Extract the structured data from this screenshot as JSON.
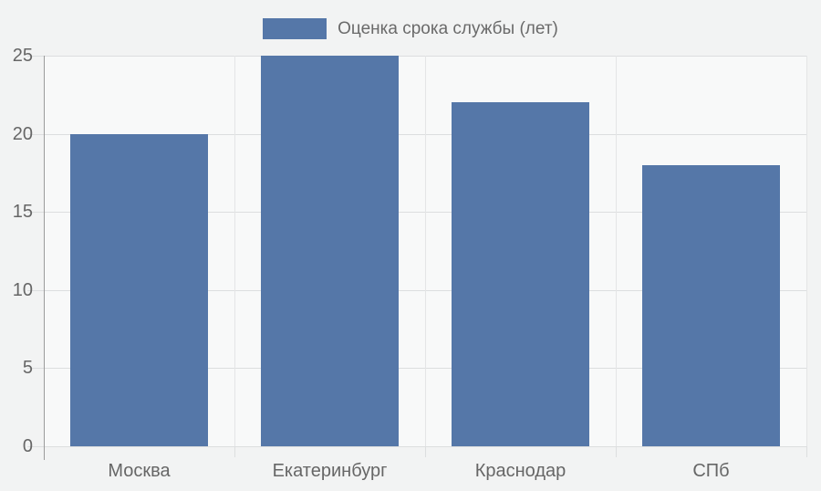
{
  "chart_data": {
    "type": "bar",
    "title": "",
    "legend": "Оценка срока службы (лет)",
    "legend_position": "top",
    "categories": [
      "Москва",
      "Екатеринбург",
      "Краснодар",
      "СПб"
    ],
    "series": [
      {
        "name": "Оценка срока службы (лет)",
        "values": [
          20,
          25,
          22,
          18
        ]
      }
    ],
    "xlabel": "",
    "ylabel": "",
    "ylim": [
      0,
      25
    ],
    "yticks": [
      0,
      5,
      10,
      15,
      20,
      25
    ],
    "grid": true
  },
  "colors": {
    "bar": "#5577a8",
    "page_bg": "#f2f3f3",
    "plot_bg": "#f8f9f9",
    "grid": "#dcdedf",
    "axis": "#9b9b9b",
    "text": "#666666"
  }
}
